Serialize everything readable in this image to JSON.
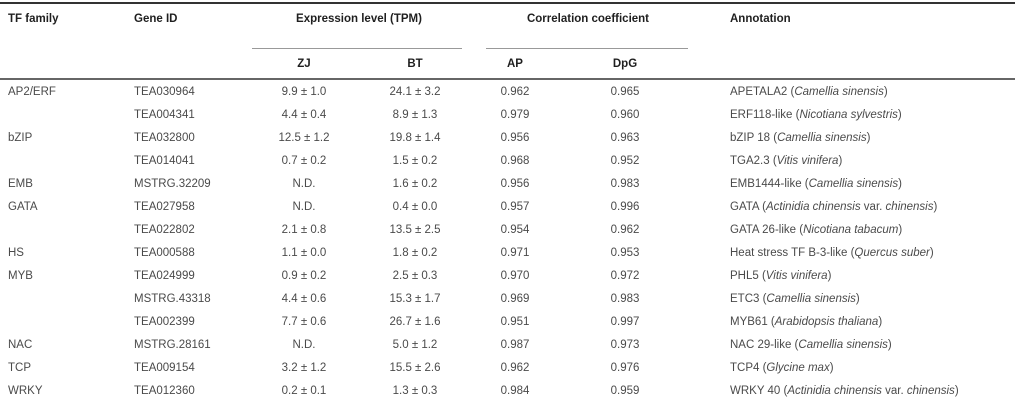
{
  "colors": {
    "header_text": "#1f1f1f",
    "body_text": "#4a4a4a",
    "rule_top": "#333333",
    "rule_header_bottom": "#666666",
    "rule_bottom": "#999999",
    "rule_spanner": "#999999"
  },
  "table": {
    "header": {
      "tf_family": "TF family",
      "gene_id": "Gene ID",
      "expression_group": "Expression level (TPM)",
      "zj": "ZJ",
      "bt": "BT",
      "correlation_group": "Correlation coefficient",
      "ap": "AP",
      "dpg": "DpG",
      "annotation": "Annotation"
    },
    "rows": [
      {
        "tf_family": "AP2/ERF",
        "gene_id": "TEA030964",
        "zj": "9.9 ± 1.0",
        "bt": "24.1 ± 3.2",
        "ap": "0.962",
        "dpg": "0.965",
        "annotation": [
          {
            "t": "APETALA2 (",
            "i": false
          },
          {
            "t": "Camellia sinensis",
            "i": true
          },
          {
            "t": ")",
            "i": false
          }
        ]
      },
      {
        "tf_family": "",
        "gene_id": "TEA004341",
        "zj": "4.4 ± 0.4",
        "bt": "8.9 ± 1.3",
        "ap": "0.979",
        "dpg": "0.960",
        "annotation": [
          {
            "t": "ERF118-like (",
            "i": false
          },
          {
            "t": "Nicotiana sylvestris",
            "i": true
          },
          {
            "t": ")",
            "i": false
          }
        ]
      },
      {
        "tf_family": "bZIP",
        "gene_id": "TEA032800",
        "zj": "12.5 ± 1.2",
        "bt": "19.8 ± 1.4",
        "ap": "0.956",
        "dpg": "0.963",
        "annotation": [
          {
            "t": "bZIP 18 (",
            "i": false
          },
          {
            "t": "Camellia sinensis",
            "i": true
          },
          {
            "t": ")",
            "i": false
          }
        ]
      },
      {
        "tf_family": "",
        "gene_id": "TEA014041",
        "zj": "0.7 ± 0.2",
        "bt": "1.5 ± 0.2",
        "ap": "0.968",
        "dpg": "0.952",
        "annotation": [
          {
            "t": "TGA2.3 (",
            "i": false
          },
          {
            "t": "Vitis vinifera",
            "i": true
          },
          {
            "t": ")",
            "i": false
          }
        ]
      },
      {
        "tf_family": "EMB",
        "gene_id": "MSTRG.32209",
        "zj": "N.D.",
        "bt": "1.6 ± 0.2",
        "ap": "0.956",
        "dpg": "0.983",
        "annotation": [
          {
            "t": "EMB1444-like (",
            "i": false
          },
          {
            "t": "Camellia sinensis",
            "i": true
          },
          {
            "t": ")",
            "i": false
          }
        ]
      },
      {
        "tf_family": "GATA",
        "gene_id": "TEA027958",
        "zj": "N.D.",
        "bt": "0.4 ± 0.0",
        "ap": "0.957",
        "dpg": "0.996",
        "annotation": [
          {
            "t": "GATA (",
            "i": false
          },
          {
            "t": "Actinidia chinensis",
            "i": true
          },
          {
            "t": " var. ",
            "i": false
          },
          {
            "t": "chinensis",
            "i": true
          },
          {
            "t": ")",
            "i": false
          }
        ]
      },
      {
        "tf_family": "",
        "gene_id": "TEA022802",
        "zj": "2.1 ± 0.8",
        "bt": "13.5 ± 2.5",
        "ap": "0.954",
        "dpg": "0.962",
        "annotation": [
          {
            "t": "GATA 26-like (",
            "i": false
          },
          {
            "t": "Nicotiana tabacum",
            "i": true
          },
          {
            "t": ")",
            "i": false
          }
        ]
      },
      {
        "tf_family": "HS",
        "gene_id": "TEA000588",
        "zj": "1.1 ± 0.0",
        "bt": "1.8 ± 0.2",
        "ap": "0.971",
        "dpg": "0.953",
        "annotation": [
          {
            "t": "Heat stress TF B-3-like (",
            "i": false
          },
          {
            "t": "Quercus suber",
            "i": true
          },
          {
            "t": ")",
            "i": false
          }
        ]
      },
      {
        "tf_family": "MYB",
        "gene_id": "TEA024999",
        "zj": "0.9 ± 0.2",
        "bt": "2.5 ± 0.3",
        "ap": "0.970",
        "dpg": "0.972",
        "annotation": [
          {
            "t": "PHL5 (",
            "i": false
          },
          {
            "t": "Vitis vinifera",
            "i": true
          },
          {
            "t": ")",
            "i": false
          }
        ]
      },
      {
        "tf_family": "",
        "gene_id": "MSTRG.43318",
        "zj": "4.4 ± 0.6",
        "bt": "15.3 ± 1.7",
        "ap": "0.969",
        "dpg": "0.983",
        "annotation": [
          {
            "t": "ETC3 (",
            "i": false
          },
          {
            "t": "Camellia sinensis",
            "i": true
          },
          {
            "t": ")",
            "i": false
          }
        ]
      },
      {
        "tf_family": "",
        "gene_id": "TEA002399",
        "zj": "7.7 ± 0.6",
        "bt": "26.7 ± 1.6",
        "ap": "0.951",
        "dpg": "0.997",
        "annotation": [
          {
            "t": "MYB61 (",
            "i": false
          },
          {
            "t": "Arabidopsis thaliana",
            "i": true
          },
          {
            "t": ")",
            "i": false
          }
        ]
      },
      {
        "tf_family": "NAC",
        "gene_id": "MSTRG.28161",
        "zj": "N.D.",
        "bt": "5.0 ± 1.2",
        "ap": "0.987",
        "dpg": "0.973",
        "annotation": [
          {
            "t": "NAC 29-like (",
            "i": false
          },
          {
            "t": "Camellia sinensis",
            "i": true
          },
          {
            "t": ")",
            "i": false
          }
        ]
      },
      {
        "tf_family": "TCP",
        "gene_id": "TEA009154",
        "zj": "3.2 ± 1.2",
        "bt": "15.5 ± 2.6",
        "ap": "0.962",
        "dpg": "0.976",
        "annotation": [
          {
            "t": "TCP4 (",
            "i": false
          },
          {
            "t": "Glycine max",
            "i": true
          },
          {
            "t": ")",
            "i": false
          }
        ]
      },
      {
        "tf_family": "WRKY",
        "gene_id": "TEA012360",
        "zj": "0.2 ± 0.1",
        "bt": "1.3 ± 0.3",
        "ap": "0.984",
        "dpg": "0.959",
        "annotation": [
          {
            "t": "WRKY 40 (",
            "i": false
          },
          {
            "t": "Actinidia chinensis",
            "i": true
          },
          {
            "t": " var. ",
            "i": false
          },
          {
            "t": "chinensis",
            "i": true
          },
          {
            "t": ")",
            "i": false
          }
        ]
      }
    ]
  }
}
